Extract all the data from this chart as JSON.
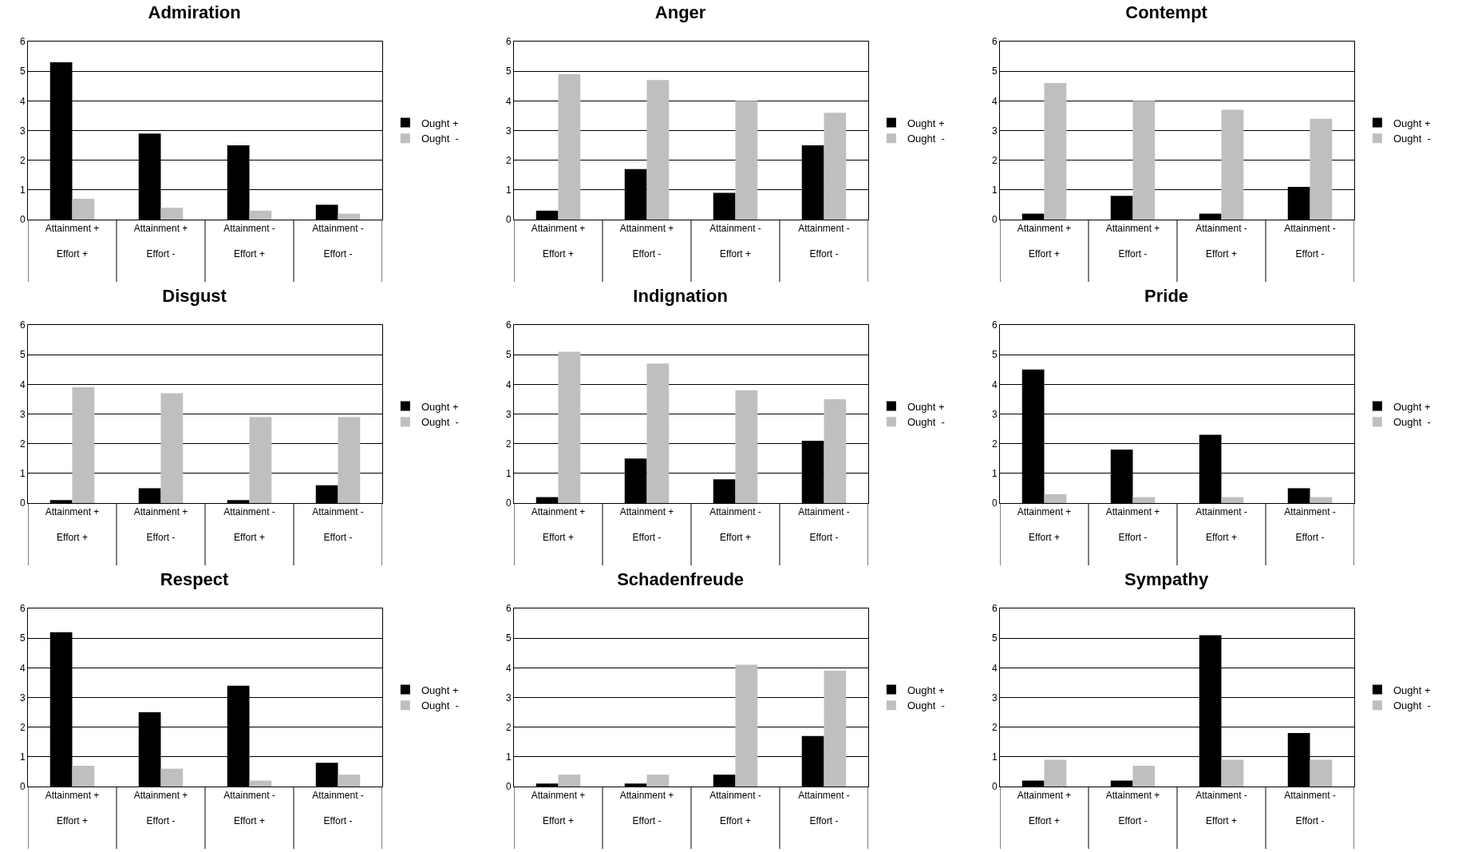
{
  "chart_data": [
    {
      "type": "bar",
      "title": "Admiration",
      "categories": [
        "Attainment +\nEffort +",
        "Attainment +\nEffort -",
        "Attainment -\nEffort +",
        "Attainment -\nEffort -"
      ],
      "ylim": [
        0,
        6
      ],
      "yticks": [
        0,
        1,
        2,
        3,
        4,
        5,
        6
      ],
      "grid": "y",
      "legend": "right",
      "series": [
        {
          "name": "Ought +",
          "color": "#000000",
          "values": [
            5.3,
            2.9,
            2.5,
            0.5
          ]
        },
        {
          "name": "Ought  -",
          "color": "#bfbfbf",
          "values": [
            0.7,
            0.4,
            0.3,
            0.2
          ]
        }
      ]
    },
    {
      "type": "bar",
      "title": "Anger",
      "categories": [
        "Attainment +\nEffort +",
        "Attainment +\nEffort -",
        "Attainment -\nEffort +",
        "Attainment -\nEffort -"
      ],
      "ylim": [
        0,
        6
      ],
      "yticks": [
        0,
        1,
        2,
        3,
        4,
        5,
        6
      ],
      "grid": "y",
      "legend": "right",
      "series": [
        {
          "name": "Ought +",
          "color": "#000000",
          "values": [
            0.3,
            1.7,
            0.9,
            2.5
          ]
        },
        {
          "name": "Ought  -",
          "color": "#bfbfbf",
          "values": [
            4.9,
            4.7,
            4.0,
            3.6
          ]
        }
      ]
    },
    {
      "type": "bar",
      "title": "Contempt",
      "categories": [
        "Attainment +\nEffort +",
        "Attainment +\nEffort -",
        "Attainment -\nEffort +",
        "Attainment -\nEffort -"
      ],
      "ylim": [
        0,
        6
      ],
      "yticks": [
        0,
        1,
        2,
        3,
        4,
        5,
        6
      ],
      "grid": "y",
      "legend": "right",
      "series": [
        {
          "name": "Ought +",
          "color": "#000000",
          "values": [
            0.2,
            0.8,
            0.2,
            1.1
          ]
        },
        {
          "name": "Ought  -",
          "color": "#bfbfbf",
          "values": [
            4.6,
            4.0,
            3.7,
            3.4
          ]
        }
      ]
    },
    {
      "type": "bar",
      "title": "Disgust",
      "categories": [
        "Attainment +\nEffort +",
        "Attainment +\nEffort -",
        "Attainment -\nEffort +",
        "Attainment -\nEffort -"
      ],
      "ylim": [
        0,
        6
      ],
      "yticks": [
        0,
        1,
        2,
        3,
        4,
        5,
        6
      ],
      "grid": "y",
      "legend": "right",
      "series": [
        {
          "name": "Ought +",
          "color": "#000000",
          "values": [
            0.1,
            0.5,
            0.1,
            0.6
          ]
        },
        {
          "name": "Ought  -",
          "color": "#bfbfbf",
          "values": [
            3.9,
            3.7,
            2.9,
            2.9
          ]
        }
      ]
    },
    {
      "type": "bar",
      "title": "Indignation",
      "categories": [
        "Attainment +\nEffort +",
        "Attainment +\nEffort -",
        "Attainment -\nEffort +",
        "Attainment -\nEffort -"
      ],
      "ylim": [
        0,
        6
      ],
      "yticks": [
        0,
        1,
        2,
        3,
        4,
        5,
        6
      ],
      "grid": "y",
      "legend": "right",
      "series": [
        {
          "name": "Ought +",
          "color": "#000000",
          "values": [
            0.2,
            1.5,
            0.8,
            2.1
          ]
        },
        {
          "name": "Ought  -",
          "color": "#bfbfbf",
          "values": [
            5.1,
            4.7,
            3.8,
            3.5
          ]
        }
      ]
    },
    {
      "type": "bar",
      "title": "Pride",
      "categories": [
        "Attainment +\nEffort +",
        "Attainment +\nEffort -",
        "Attainment -\nEffort +",
        "Attainment -\nEffort -"
      ],
      "ylim": [
        0,
        6
      ],
      "yticks": [
        0,
        1,
        2,
        3,
        4,
        5,
        6
      ],
      "grid": "y",
      "legend": "right",
      "series": [
        {
          "name": "Ought +",
          "color": "#000000",
          "values": [
            4.5,
            1.8,
            2.3,
            0.5
          ]
        },
        {
          "name": "Ought  -",
          "color": "#bfbfbf",
          "values": [
            0.3,
            0.2,
            0.2,
            0.2
          ]
        }
      ]
    },
    {
      "type": "bar",
      "title": "Respect",
      "categories": [
        "Attainment +\nEffort +",
        "Attainment +\nEffort -",
        "Attainment -\nEffort +",
        "Attainment -\nEffort -"
      ],
      "ylim": [
        0,
        6
      ],
      "yticks": [
        0,
        1,
        2,
        3,
        4,
        5,
        6
      ],
      "grid": "y",
      "legend": "right",
      "series": [
        {
          "name": "Ought +",
          "color": "#000000",
          "values": [
            5.2,
            2.5,
            3.4,
            0.8
          ]
        },
        {
          "name": "Ought  -",
          "color": "#bfbfbf",
          "values": [
            0.7,
            0.6,
            0.2,
            0.4
          ]
        }
      ]
    },
    {
      "type": "bar",
      "title": "Schadenfreude",
      "categories": [
        "Attainment +\nEffort +",
        "Attainment +\nEffort -",
        "Attainment -\nEffort +",
        "Attainment -\nEffort -"
      ],
      "ylim": [
        0,
        6
      ],
      "yticks": [
        0,
        1,
        2,
        3,
        4,
        5,
        6
      ],
      "grid": "y",
      "legend": "right",
      "series": [
        {
          "name": "Ought +",
          "color": "#000000",
          "values": [
            0.1,
            0.1,
            0.4,
            1.7
          ]
        },
        {
          "name": "Ought  -",
          "color": "#bfbfbf",
          "values": [
            0.4,
            0.4,
            4.1,
            3.9
          ]
        }
      ]
    },
    {
      "type": "bar",
      "title": "Sympathy",
      "categories": [
        "Attainment +\nEffort +",
        "Attainment +\nEffort -",
        "Attainment -\nEffort +",
        "Attainment -\nEffort -"
      ],
      "ylim": [
        0,
        6
      ],
      "yticks": [
        0,
        1,
        2,
        3,
        4,
        5,
        6
      ],
      "grid": "y",
      "legend": "right",
      "series": [
        {
          "name": "Ought +",
          "color": "#000000",
          "values": [
            0.2,
            0.2,
            5.1,
            1.8
          ]
        },
        {
          "name": "Ought  -",
          "color": "#bfbfbf",
          "values": [
            0.9,
            0.7,
            0.9,
            0.9
          ]
        }
      ]
    }
  ]
}
